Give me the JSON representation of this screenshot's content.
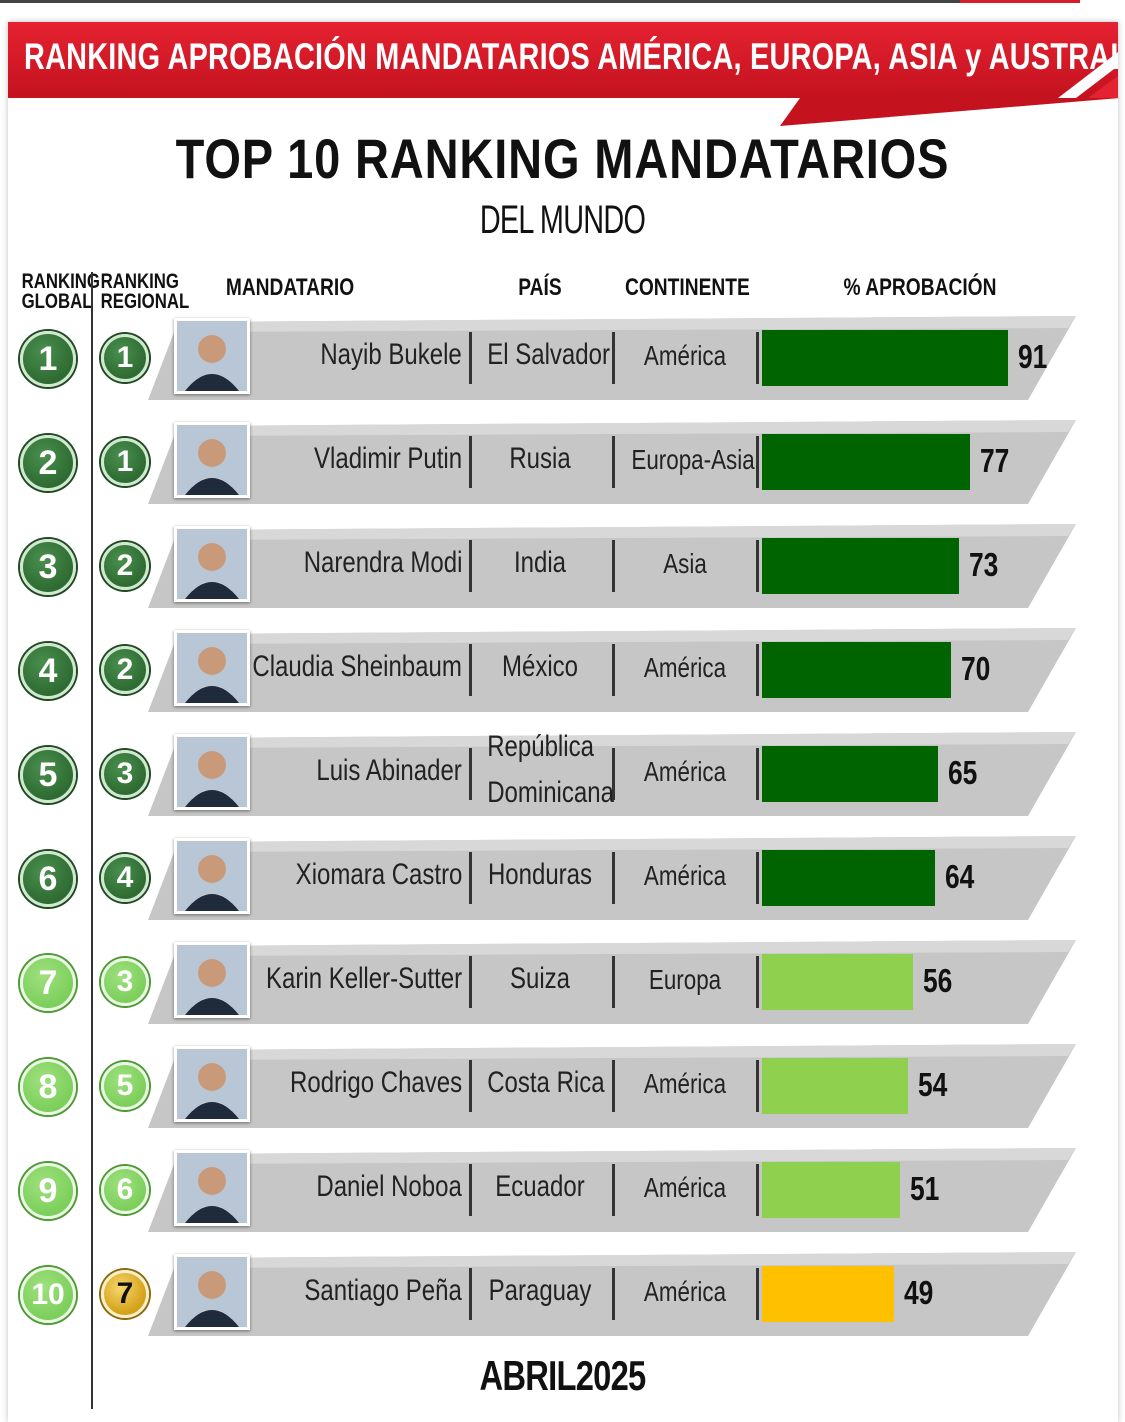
{
  "banner_title": "RANKING APROBACIÓN MANDATARIOS AMÉRICA, EUROPA, ASIA y AUSTRALIA",
  "main_title": "TOP 10 RANKING MANDATARIOS",
  "sub_title": "DEL MUNDO",
  "footer": "ABRIL2025",
  "colors": {
    "banner_red": "#d81e2b",
    "high": "#006400",
    "mid": "#8fd14f",
    "low": "#ffc000",
    "row_bg": "#bdbdbd",
    "circle_dark": "#2e6b32",
    "circle_light": "#7ccf5b",
    "circle_gold": "#d4a017"
  },
  "headers": {
    "ranking_global_1": "RANKING",
    "ranking_global_2": "GLOBAL",
    "ranking_regional_1": "RANKING",
    "ranking_regional_2": "REGIONAL",
    "mandatario": "MANDATARIO",
    "pais": "PAÍS",
    "continente": "CONTINENTE",
    "aprobacion": "% APROBACIÓN"
  },
  "chart_data": {
    "type": "bar",
    "title": "TOP 10 RANKING MANDATARIOS",
    "subtitle": "DEL MUNDO",
    "xlabel": "% APROBACIÓN",
    "xlim": [
      0,
      100
    ],
    "rows": [
      {
        "global": "1",
        "regional": "1",
        "name": "Nayib Bukele",
        "country": "El Salvador",
        "continent": "América",
        "value": 91,
        "tier": "high",
        "reg_style": "dark"
      },
      {
        "global": "2",
        "regional": "1",
        "name": "Vladimir Putin",
        "country": "Rusia",
        "continent": "Europa-Asia",
        "value": 77,
        "tier": "high",
        "reg_style": "dark"
      },
      {
        "global": "3",
        "regional": "2",
        "name": "Narendra Modi",
        "country": "India",
        "continent": "Asia",
        "value": 73,
        "tier": "high",
        "reg_style": "dark"
      },
      {
        "global": "4",
        "regional": "2",
        "name": "Claudia Sheinbaum",
        "country": "México",
        "continent": "América",
        "value": 70,
        "tier": "high",
        "reg_style": "dark"
      },
      {
        "global": "5",
        "regional": "3",
        "name": "Luis Abinader",
        "country": "República Dominicana",
        "country_l1": "República",
        "country_l2": "Dominicana",
        "continent": "América",
        "value": 65,
        "tier": "high",
        "reg_style": "dark"
      },
      {
        "global": "6",
        "regional": "4",
        "name": "Xiomara Castro",
        "country": "Honduras",
        "continent": "América",
        "value": 64,
        "tier": "high",
        "reg_style": "dark"
      },
      {
        "global": "7",
        "regional": "3",
        "name": "Karin Keller-Sutter",
        "country": "Suiza",
        "continent": "Europa",
        "value": 56,
        "tier": "mid",
        "reg_style": "light"
      },
      {
        "global": "8",
        "regional": "5",
        "name": "Rodrigo Chaves",
        "country": "Costa Rica",
        "continent": "América",
        "value": 54,
        "tier": "mid",
        "reg_style": "light"
      },
      {
        "global": "9",
        "regional": "6",
        "name": "Daniel Noboa",
        "country": "Ecuador",
        "continent": "América",
        "value": 51,
        "tier": "mid",
        "reg_style": "light"
      },
      {
        "global": "10",
        "regional": "7",
        "name": "Santiago Peña",
        "country": "Paraguay",
        "continent": "América",
        "value": 49,
        "tier": "low",
        "reg_style": "gold"
      }
    ]
  }
}
